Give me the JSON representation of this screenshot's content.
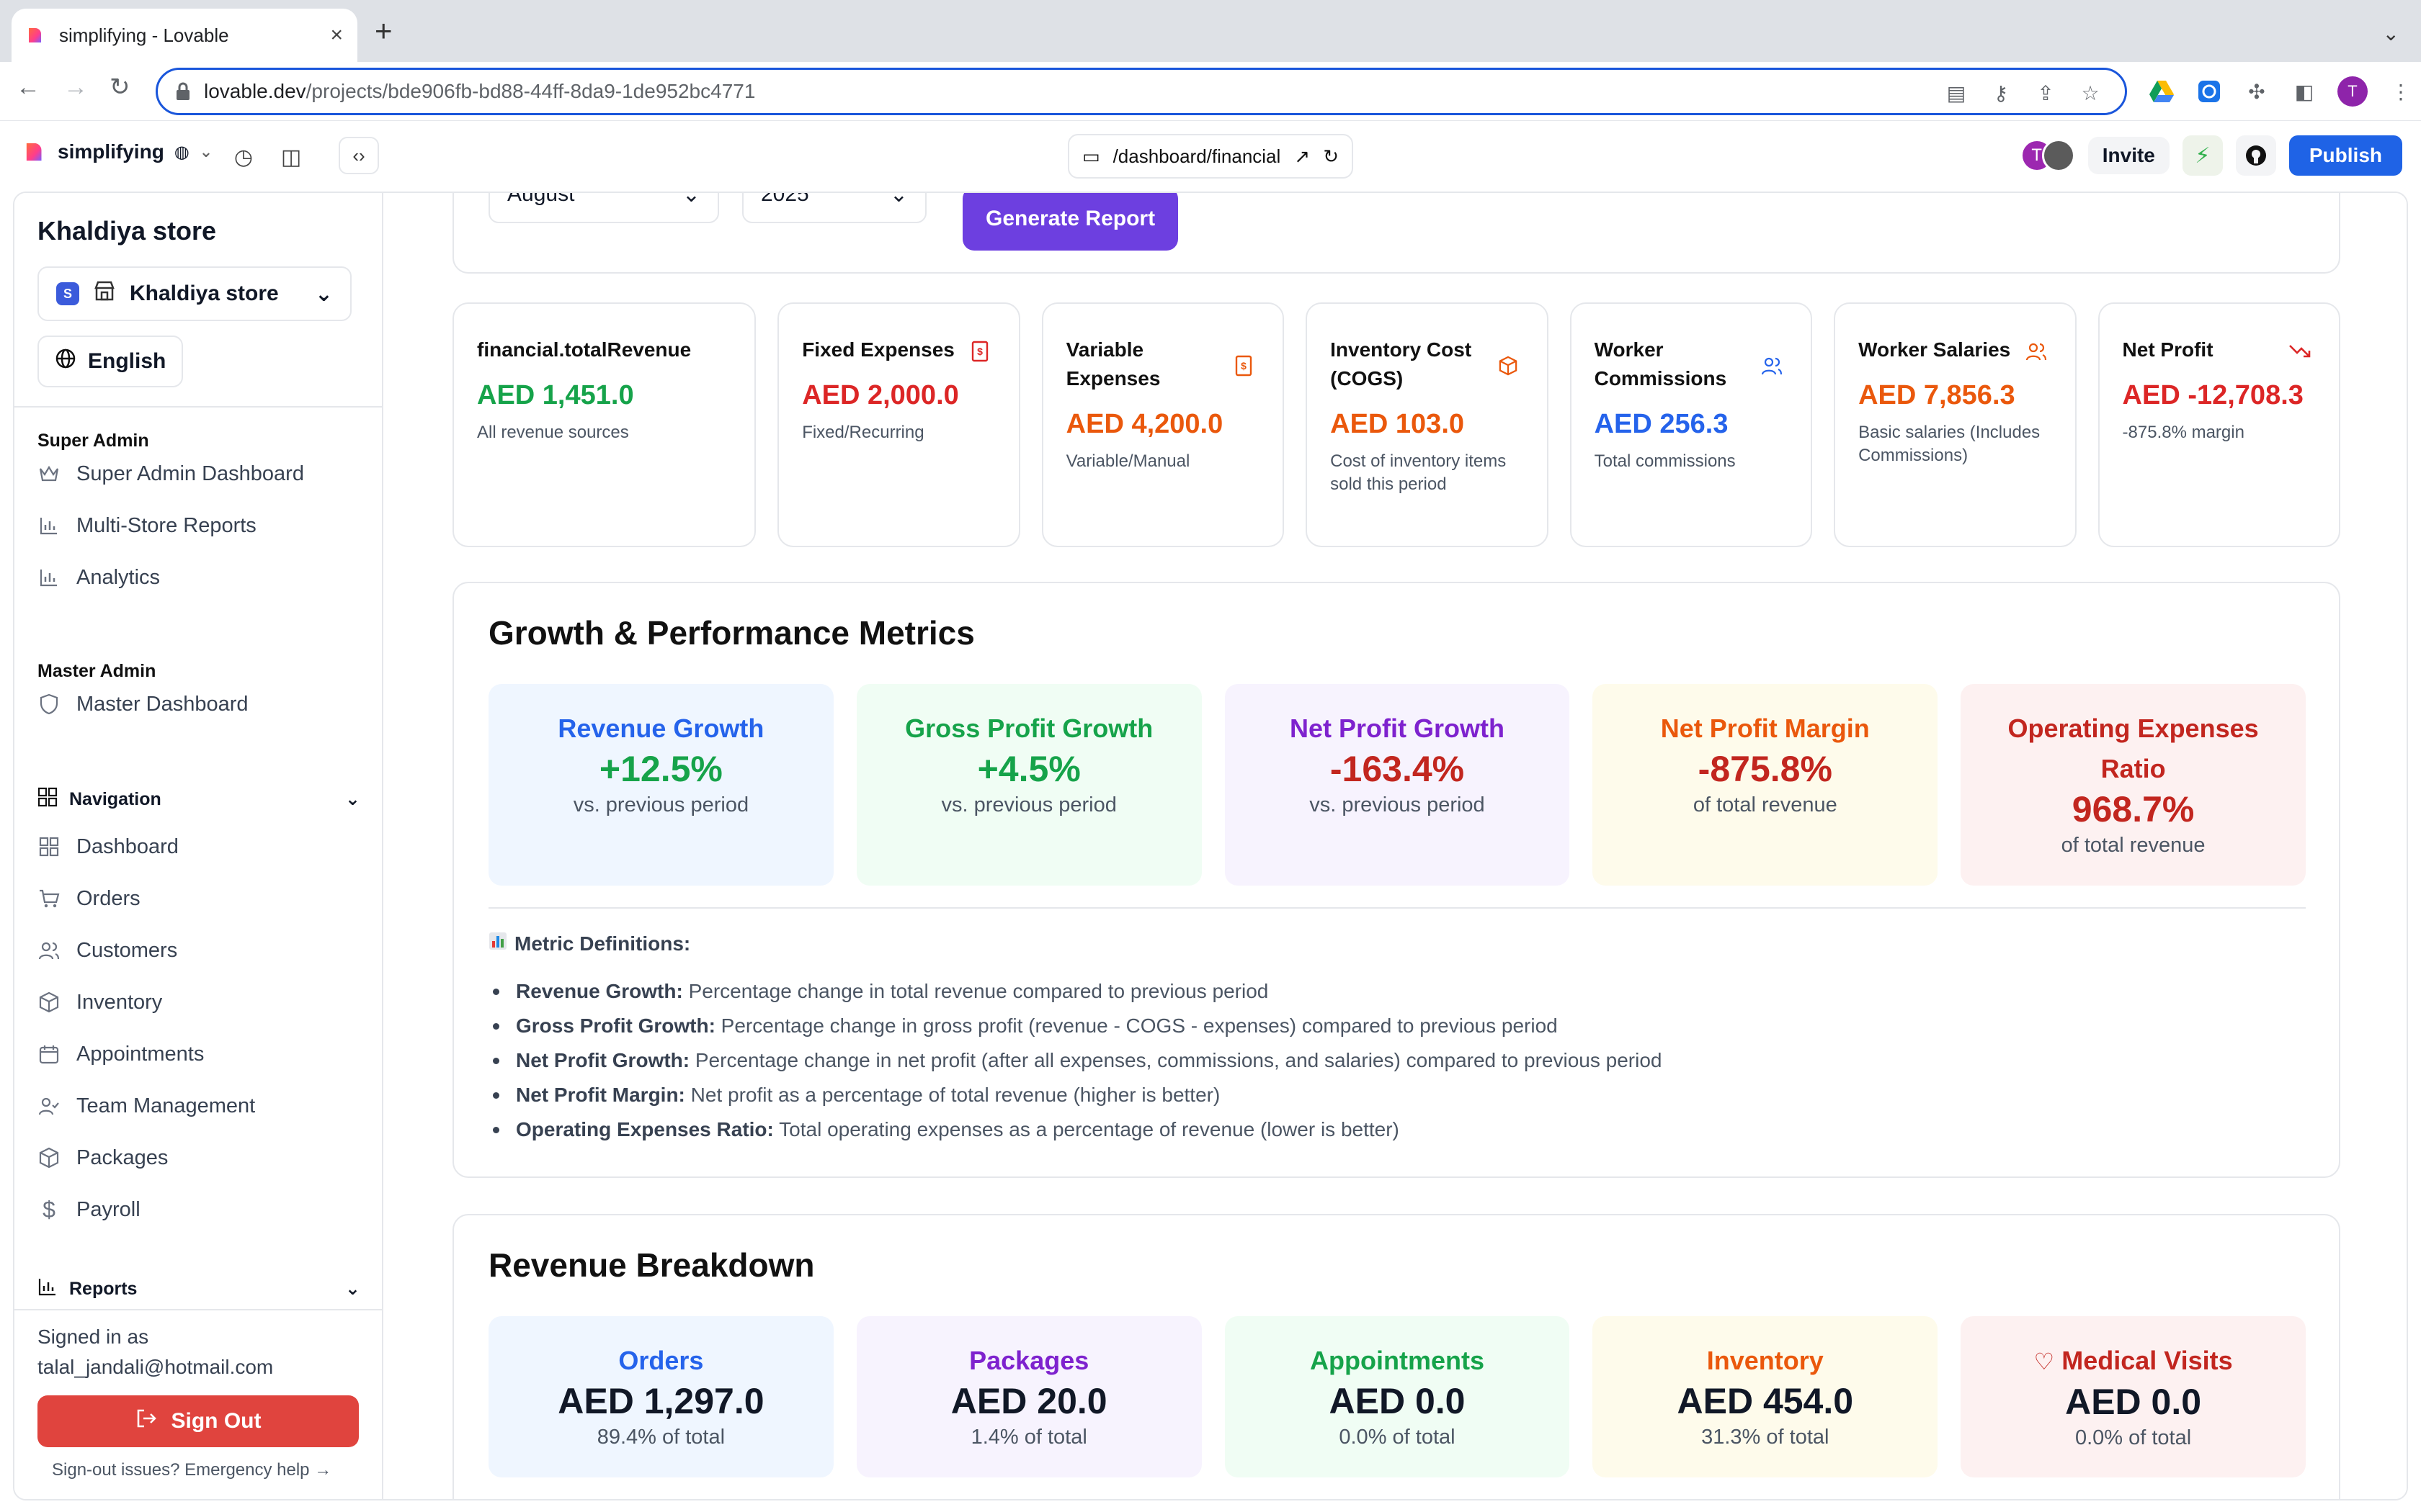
{
  "browser": {
    "tab_title": "simplifying - Lovable",
    "url_host": "lovable.dev",
    "url_path": "/projects/bde906fb-bd88-44ff-8da9-1de952bc4771",
    "profile_initial": "T"
  },
  "toolbar": {
    "project_name": "simplifying",
    "path": "/dashboard/financial",
    "avatar_initial": "T",
    "invite_label": "Invite",
    "publish_label": "Publish"
  },
  "sidebar": {
    "store_title": "Khaldiya store",
    "store_badge": "S",
    "store_select": "Khaldiya store",
    "language": "English",
    "super_admin": {
      "label": "Super Admin",
      "items": [
        "Super Admin Dashboard",
        "Multi-Store Reports",
        "Analytics"
      ]
    },
    "master_admin": {
      "label": "Master Admin",
      "items": [
        "Master Dashboard"
      ]
    },
    "navigation": {
      "label": "Navigation",
      "items": [
        "Dashboard",
        "Orders",
        "Customers",
        "Inventory",
        "Appointments",
        "Team Management",
        "Packages",
        "Payroll"
      ]
    },
    "reports_label": "Reports",
    "signed_in_label": "Signed in as",
    "email": "talal_jandali@hotmail.com",
    "signout_label": "Sign Out",
    "emergency": "Sign-out issues? Emergency help →"
  },
  "filters": {
    "month": "August",
    "year": "2025",
    "generate_label": "Generate Report"
  },
  "metrics": [
    {
      "title": "financial.totalRevenue",
      "value": "AED 1,451.0",
      "sub": "All revenue sources",
      "color": "#16a34a",
      "icon": ""
    },
    {
      "title": "Fixed Expenses",
      "value": "AED 2,000.0",
      "sub": "Fixed/Recurring",
      "color": "#dc2626",
      "icon": "receipt-icon"
    },
    {
      "title": "Variable Expenses",
      "value": "AED 4,200.0",
      "sub": "Variable/Manual",
      "color": "#ea580c",
      "icon": "receipt-icon"
    },
    {
      "title": "Inventory Cost (COGS)",
      "value": "AED 103.0",
      "sub": "Cost of inventory items sold this period",
      "color": "#ea580c",
      "icon": "box-icon"
    },
    {
      "title": "Worker Commissions",
      "value": "AED 256.3",
      "sub": "Total commissions",
      "color": "#2563eb",
      "icon": "users-icon"
    },
    {
      "title": "Worker Salaries",
      "value": "AED 7,856.3",
      "sub": "Basic salaries (Includes Commissions)",
      "color": "#ea580c",
      "icon": "users-icon"
    },
    {
      "title": "Net Profit",
      "value": "AED -12,708.3",
      "sub": "-875.8% margin",
      "color": "#dc2626",
      "icon": "trending-down-icon"
    }
  ],
  "growth": {
    "title": "Growth & Performance Metrics",
    "tiles": [
      {
        "label": "Revenue Growth",
        "value": "+12.5%",
        "sub": "vs. previous period"
      },
      {
        "label": "Gross Profit Growth",
        "value": "+4.5%",
        "sub": "vs. previous period"
      },
      {
        "label": "Net Profit Growth",
        "value": "-163.4%",
        "sub": "vs. previous period"
      },
      {
        "label": "Net Profit Margin",
        "value": "-875.8%",
        "sub": "of total revenue"
      },
      {
        "label": "Operating Expenses Ratio",
        "value": "968.7%",
        "sub": "of total revenue"
      }
    ],
    "defs_title": "Metric Definitions:",
    "defs": [
      {
        "term": "Revenue Growth:",
        "text": " Percentage change in total revenue compared to previous period"
      },
      {
        "term": "Gross Profit Growth:",
        "text": " Percentage change in gross profit (revenue - COGS - expenses) compared to previous period"
      },
      {
        "term": "Net Profit Growth:",
        "text": " Percentage change in net profit (after all expenses, commissions, and salaries) compared to previous period"
      },
      {
        "term": "Net Profit Margin:",
        "text": " Net profit as a percentage of total revenue (higher is better)"
      },
      {
        "term": "Operating Expenses Ratio:",
        "text": " Total operating expenses as a percentage of revenue (lower is better)"
      }
    ]
  },
  "revenue": {
    "title": "Revenue Breakdown",
    "tiles": [
      {
        "label": "Orders",
        "value": "AED 1,297.0",
        "sub": "89.4% of total"
      },
      {
        "label": "Packages",
        "value": "AED 20.0",
        "sub": "1.4% of total"
      },
      {
        "label": "Appointments",
        "value": "AED 0.0",
        "sub": "0.0% of total"
      },
      {
        "label": "Inventory",
        "value": "AED 454.0",
        "sub": "31.3% of total"
      },
      {
        "label": "Medical Visits",
        "value": "AED 0.0",
        "sub": "0.0% of total"
      }
    ]
  },
  "colors": {
    "accent_purple": "#6d3fe0",
    "publish_blue": "#1f63e6",
    "signout_red": "#e0443e"
  }
}
